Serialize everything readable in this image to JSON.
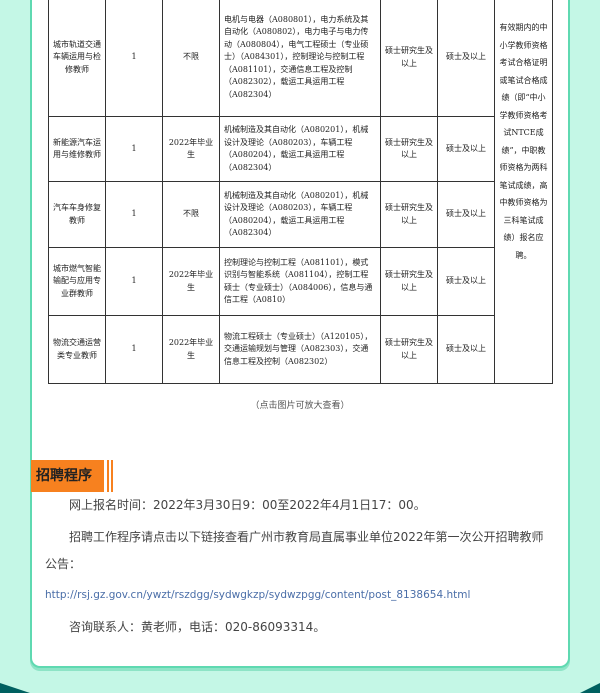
{
  "table": {
    "rows": [
      {
        "position": "城市轨道交通车辆运用与检修教师",
        "count": "1",
        "graduate": "不限",
        "majors": "电机与电器（A080801），电力系统及其自动化（A080802），电力电子与电力传动（A080804），电气工程硕士（专业硕士）（A084301），控制理论与控制工程（A081101），交通信息工程及控制（A082302），载运工具运用工程（A082304）",
        "education": "硕士研究生及以上",
        "degree": "硕士及以上"
      },
      {
        "position": "新能源汽车运用与维修教师",
        "count": "1",
        "graduate": "2022年毕业生",
        "majors": "机械制造及其自动化（A080201），机械设计及理论（A080203），车辆工程（A080204），载运工具运用工程（A082304）",
        "education": "硕士研究生及以上",
        "degree": "硕士及以上"
      },
      {
        "position": "汽车车身修复教师",
        "count": "1",
        "graduate": "不限",
        "majors": "机械制造及其自动化（A080201），机械设计及理论（A080203），车辆工程（A080204），载运工具运用工程（A082304）",
        "education": "硕士研究生及以上",
        "degree": "硕士及以上"
      },
      {
        "position": "城市燃气智能输配与应用专业群教师",
        "count": "1",
        "graduate": "2022年毕业生",
        "majors": "控制理论与控制工程（A081101），模式识别与智能系统（A081104），控制工程硕士（专业硕士）（A084006），信息与通信工程（A0810）",
        "education": "硕士研究生及以上",
        "degree": "硕士及以上"
      },
      {
        "position": "物流交通运营类专业教师",
        "count": "1",
        "graduate": "2022年毕业生",
        "majors": "物流工程硕士（专业硕士）（A120105），交通运输规划与管理（A082303），交通信息工程及控制（A082302）",
        "education": "硕士研究生及以上",
        "degree": "硕士及以上"
      }
    ],
    "note": "有效期内的中小学教师资格考试合格证明或笔试合格成绩（即“中小学教师资格考试NTCE成绩”，中职教师资格为两科笔试成绩，高中教师资格为三科笔试成绩）报名应聘。"
  },
  "caption": "（点击图片可放大查看）",
  "section": {
    "title": "招聘程序",
    "time": "网上报名时间：2022年3月30日9：00至2022年4月1日17：00。",
    "procedure": "招聘工作程序请点击以下链接查看广州市教育局直属事业单位2022年第一次公开招聘教师公告：",
    "link": "http://rsj.gz.gov.cn/ywzt/rszdgg/sydwgkzp/sydwzpgg/content/post_8138654.html",
    "contact": "咨询联系人：黄老师，电话：020-86093314。"
  },
  "colors": {
    "background": "#c4f7e6",
    "accent": "#f7811f",
    "border": "#5fd9b1",
    "corner": "#006060"
  }
}
